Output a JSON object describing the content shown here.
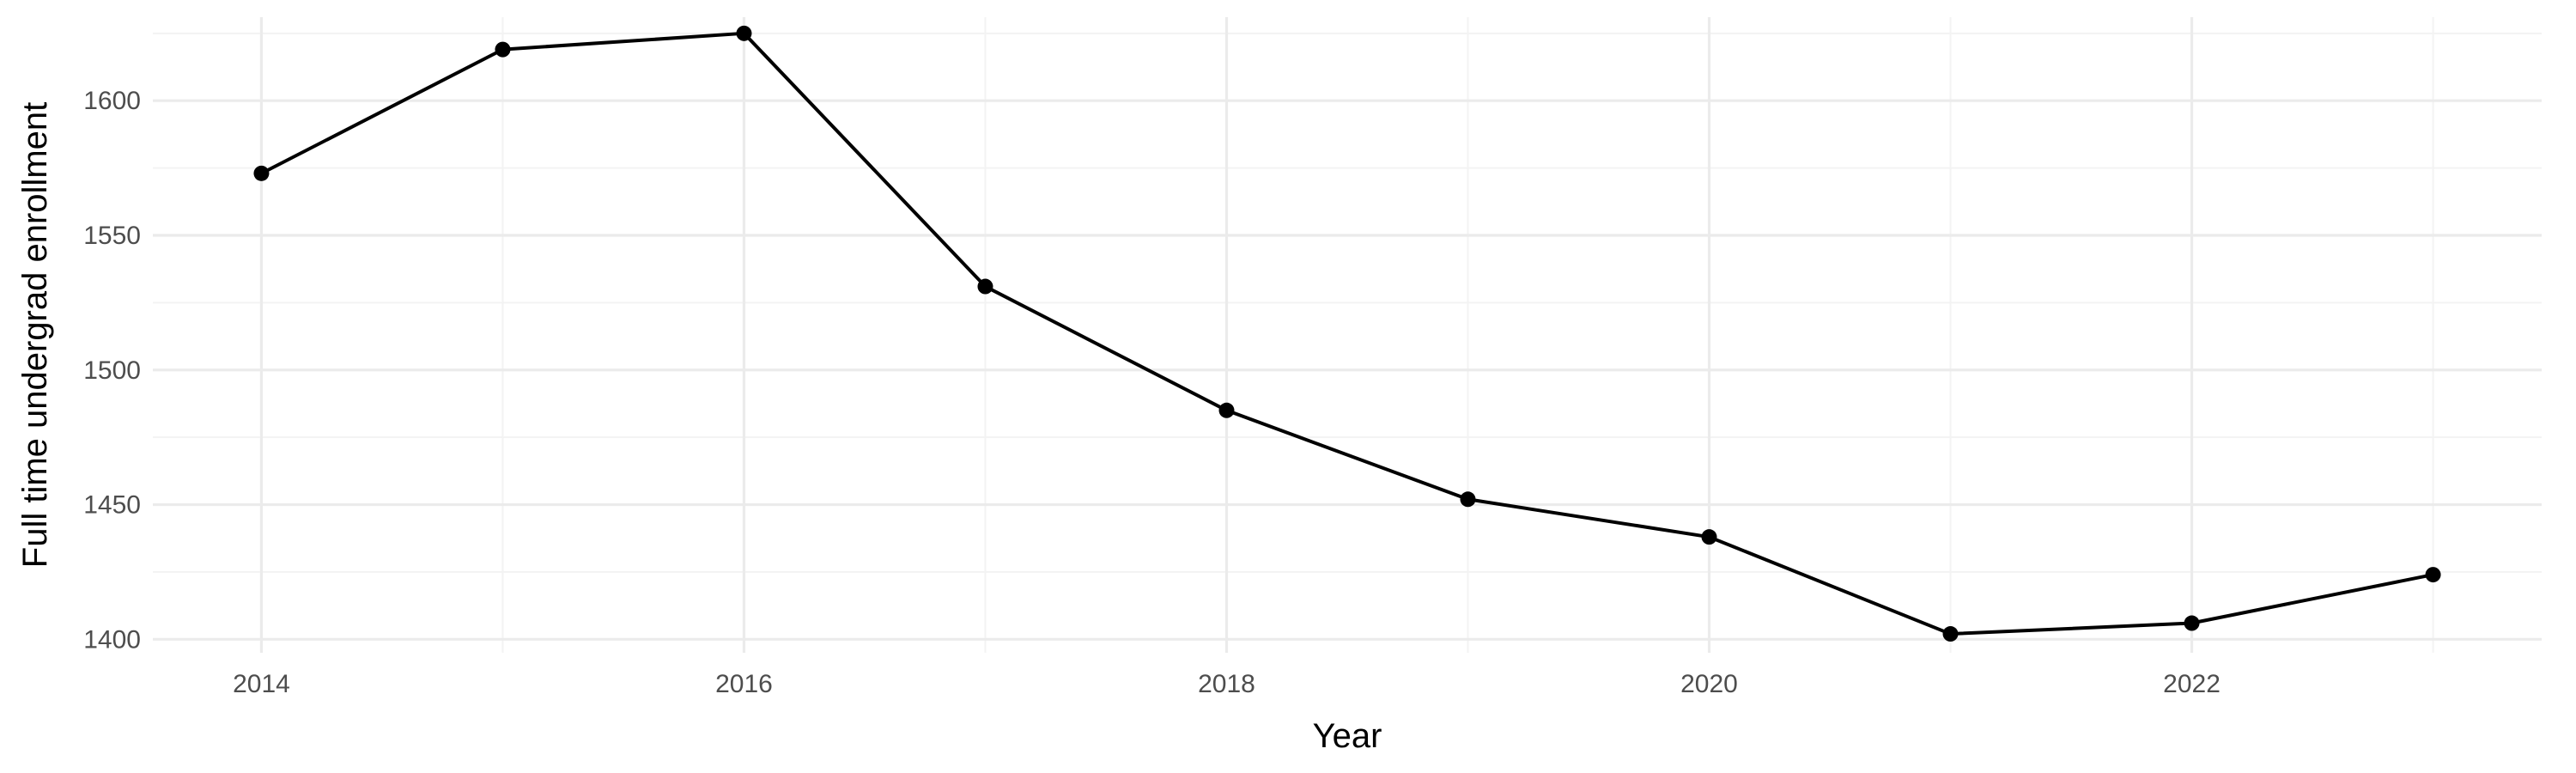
{
  "chart_data": {
    "type": "line",
    "xlabel": "Year",
    "ylabel": "Full time undergrad enrollment",
    "x": [
      2014,
      2015,
      2016,
      2017,
      2018,
      2019,
      2020,
      2021,
      2022,
      2023
    ],
    "series": [
      {
        "values": [
          1573,
          1619,
          1625,
          1531,
          1485,
          1452,
          1438,
          1402,
          1406,
          1424
        ]
      }
    ],
    "xlim": [
      2013.55,
      2023.45
    ],
    "ylim": [
      1395,
      1631
    ],
    "x_ticks": [
      "2014",
      "2016",
      "2018",
      "2020",
      "2022"
    ],
    "x_tick_values": [
      2014,
      2016,
      2018,
      2020,
      2022
    ],
    "y_ticks": [
      "1400",
      "1450",
      "1500",
      "1550",
      "1600"
    ],
    "y_tick_values": [
      1400,
      1450,
      1500,
      1550,
      1600
    ],
    "grid": true,
    "legend": "none",
    "colors": {
      "line": "#000000",
      "point": "#000000",
      "grid_major": "#ebebeb",
      "grid_minor": "#f3f3f3"
    }
  }
}
